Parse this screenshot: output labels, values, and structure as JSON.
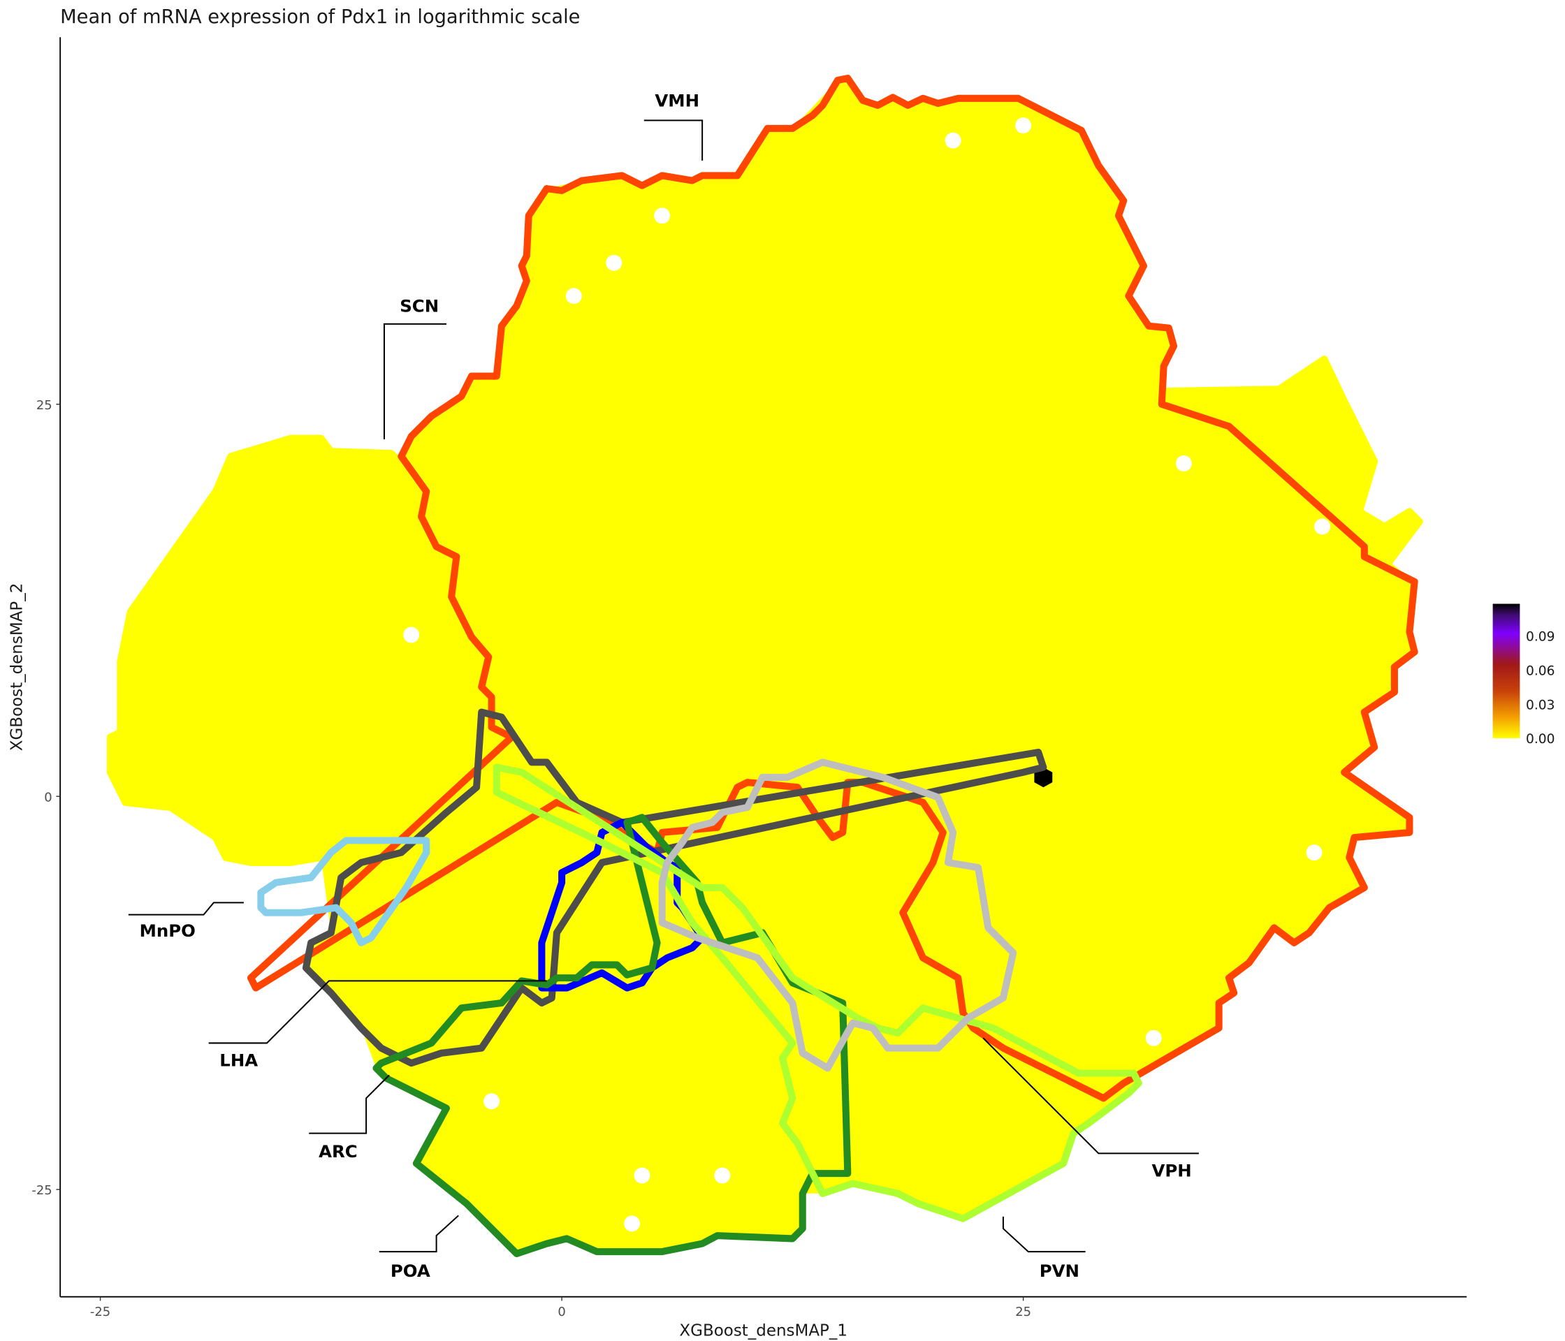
{
  "chart_data": {
    "type": "heatmap",
    "subtype": "hexbin with region outlines",
    "title": "Mean of mRNA expression of Pdx1 in logarithmic scale",
    "xlabel": "XGBoost_densMAP_1",
    "ylabel": "XGBoost_densMAP_2",
    "x_ticks": [
      "-25",
      "0",
      "25"
    ],
    "y_ticks": [
      "25",
      "0",
      "-25"
    ],
    "xlim": [
      -27,
      49
    ],
    "ylim": [
      -32,
      48
    ],
    "grid": false,
    "fill_value_dominant": 0.0,
    "max_value_hex_location": [
      26,
      1.3
    ],
    "colorbar": {
      "ticks": [
        "0.00",
        "0.03",
        "0.06",
        "0.09"
      ],
      "range": [
        0,
        0.105
      ],
      "colors": [
        "#ffff00",
        "#f5a300",
        "#c8420a",
        "#a01818",
        "#7f00ff",
        "#3d0c6e",
        "#000000"
      ],
      "placement": "right"
    },
    "regions": [
      {
        "name": "VMH",
        "color": "#ff4500"
      },
      {
        "name": "SCN",
        "color": "#ffff00"
      },
      {
        "name": "MnPO",
        "color": "#87ceeb"
      },
      {
        "name": "LHA",
        "color": "#4d4d4d"
      },
      {
        "name": "ARC",
        "color": "#228b22"
      },
      {
        "name": "POA",
        "color": "#0000ff"
      },
      {
        "name": "PVN",
        "color": "#adff2f"
      },
      {
        "name": "VPH",
        "color": "#bebebe"
      }
    ]
  }
}
